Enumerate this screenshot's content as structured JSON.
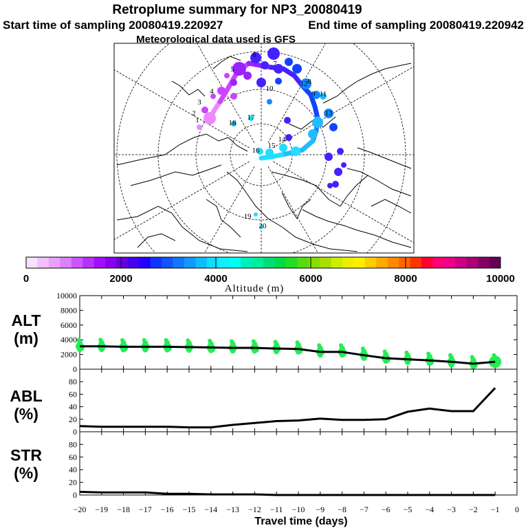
{
  "header": {
    "title": "Retroplume summary for NP3_20080419",
    "start": "Start time of sampling 20080419.220927",
    "end": "End time of sampling 20080419.220942",
    "met": "Meteorological data used is GFS"
  },
  "colors": {
    "line": "#000000",
    "alt_points": "#22ee55",
    "map_points": [
      "#ee88ff",
      "#cc44ff",
      "#9922ff",
      "#4422ff",
      "#1144ff",
      "#1188ff",
      "#22bbff",
      "#22ddff"
    ]
  },
  "colorbar": {
    "title": "Altitude (m)",
    "ticks": [
      "0",
      "2000",
      "4000",
      "6000",
      "8000",
      "10000"
    ],
    "colors": [
      "#f8e0ff",
      "#f0c0ff",
      "#e8a0ff",
      "#dc80ff",
      "#cc55ff",
      "#b830ff",
      "#a010ff",
      "#8800ee",
      "#6600dd",
      "#4400ee",
      "#2200ff",
      "#1133ff",
      "#1155ff",
      "#1177ff",
      "#1199ff",
      "#11bbff",
      "#11ddff",
      "#11eeff",
      "#00ffee",
      "#00eebb",
      "#00ee99",
      "#00dd77",
      "#00dd44",
      "#22dd22",
      "#55dd11",
      "#88dd00",
      "#aadd00",
      "#ccee00",
      "#eeee00",
      "#ffee00",
      "#ffcc00",
      "#ffaa00",
      "#ff8800",
      "#ff6600",
      "#ff3300",
      "#ff0033",
      "#ff0077",
      "#ee0088",
      "#cc0088",
      "#aa0077",
      "#880066",
      "#660055"
    ]
  },
  "map": {
    "labels": [
      "1",
      "2",
      "3",
      "4",
      "5",
      "6",
      "7",
      "8",
      "9",
      "10",
      "11",
      "12",
      "13",
      "14",
      "15",
      "16",
      "17",
      "18",
      "19",
      "20"
    ]
  },
  "chart_data": [
    {
      "type": "line",
      "panel": "ALT",
      "ylabel": "ALT\n(m)",
      "ylabel_line1": "ALT",
      "ylabel_line2": "(m)",
      "xlabel": "Travel time (days)",
      "ylim": [
        0,
        10000
      ],
      "yticks": [
        "0",
        "2000",
        "4000",
        "6000",
        "8000",
        "10000"
      ],
      "x": [
        -20,
        -19,
        -18,
        -17,
        -16,
        -15,
        -14,
        -13,
        -12,
        -11,
        -10,
        -9,
        -8,
        -7,
        -6,
        -5,
        -4,
        -3,
        -2,
        -1
      ],
      "values": [
        3100,
        3100,
        3050,
        3050,
        3050,
        3000,
        2950,
        2900,
        2900,
        2800,
        2750,
        2350,
        2350,
        1900,
        1500,
        1350,
        1200,
        1000,
        750,
        1000
      ]
    },
    {
      "type": "line",
      "panel": "ABL",
      "ylabel_line1": "ABL",
      "ylabel_line2": "(%)",
      "ylim": [
        0,
        100
      ],
      "yticks": [
        "0",
        "20",
        "40",
        "60",
        "80"
      ],
      "x": [
        -20,
        -19,
        -18,
        -17,
        -16,
        -15,
        -14,
        -13,
        -12,
        -11,
        -10,
        -9,
        -8,
        -7,
        -6,
        -5,
        -4,
        -3,
        -2,
        -1
      ],
      "values": [
        9,
        8,
        8,
        8,
        8,
        7,
        7,
        11,
        14,
        17,
        18,
        21,
        19,
        19,
        20,
        32,
        37,
        33,
        33,
        70
      ]
    },
    {
      "type": "line",
      "panel": "STR",
      "ylabel_line1": "STR",
      "ylabel_line2": "(%)",
      "ylim": [
        0,
        100
      ],
      "yticks": [
        "0",
        "20",
        "40",
        "60",
        "80"
      ],
      "x": [
        -20,
        -19,
        -18,
        -17,
        -16,
        -15,
        -14,
        -13,
        -12,
        -11,
        -10,
        -9,
        -8,
        -7,
        -6,
        -5,
        -4,
        -3,
        -2,
        -1
      ],
      "values": [
        5,
        4,
        4,
        4,
        2,
        2,
        1,
        1,
        1,
        0,
        0,
        0,
        0,
        0,
        0,
        0,
        0,
        0,
        0,
        0
      ]
    }
  ],
  "xaxis": {
    "ticks": [
      "−20",
      "−19",
      "−18",
      "−17",
      "−16",
      "−15",
      "−14",
      "−13",
      "−12",
      "−11",
      "−10",
      "−9",
      "−8",
      "−7",
      "−6",
      "−5",
      "−4",
      "−3",
      "−2",
      "−1",
      "0"
    ],
    "label": "Travel time (days)"
  }
}
